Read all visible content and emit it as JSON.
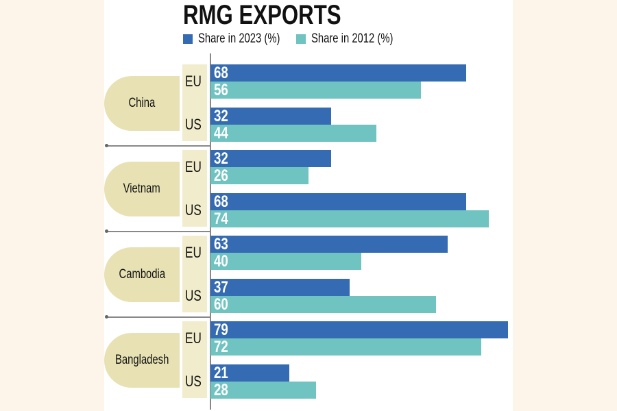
{
  "chart_data": {
    "type": "bar",
    "orientation": "horizontal",
    "title": "RMG EXPORTS",
    "legend": "top",
    "series": [
      {
        "name": "Share in 2023 (%)",
        "color": "#346bb2"
      },
      {
        "name": "Share in 2012 (%)",
        "color": "#6fc3c0"
      }
    ],
    "groups": [
      {
        "country": "China",
        "markets": [
          {
            "market": "EU",
            "values": [
              68,
              56
            ]
          },
          {
            "market": "US",
            "values": [
              32,
              44
            ]
          }
        ]
      },
      {
        "country": "Vietnam",
        "markets": [
          {
            "market": "EU",
            "values": [
              32,
              26
            ]
          },
          {
            "market": "US",
            "values": [
              68,
              74
            ]
          }
        ]
      },
      {
        "country": "Cambodia",
        "markets": [
          {
            "market": "EU",
            "values": [
              63,
              40
            ]
          },
          {
            "market": "US",
            "values": [
              37,
              60
            ]
          }
        ]
      },
      {
        "country": "Bangladesh",
        "markets": [
          {
            "market": "EU",
            "values": [
              79,
              72
            ]
          },
          {
            "market": "US",
            "values": [
              21,
              28
            ]
          }
        ]
      }
    ]
  }
}
